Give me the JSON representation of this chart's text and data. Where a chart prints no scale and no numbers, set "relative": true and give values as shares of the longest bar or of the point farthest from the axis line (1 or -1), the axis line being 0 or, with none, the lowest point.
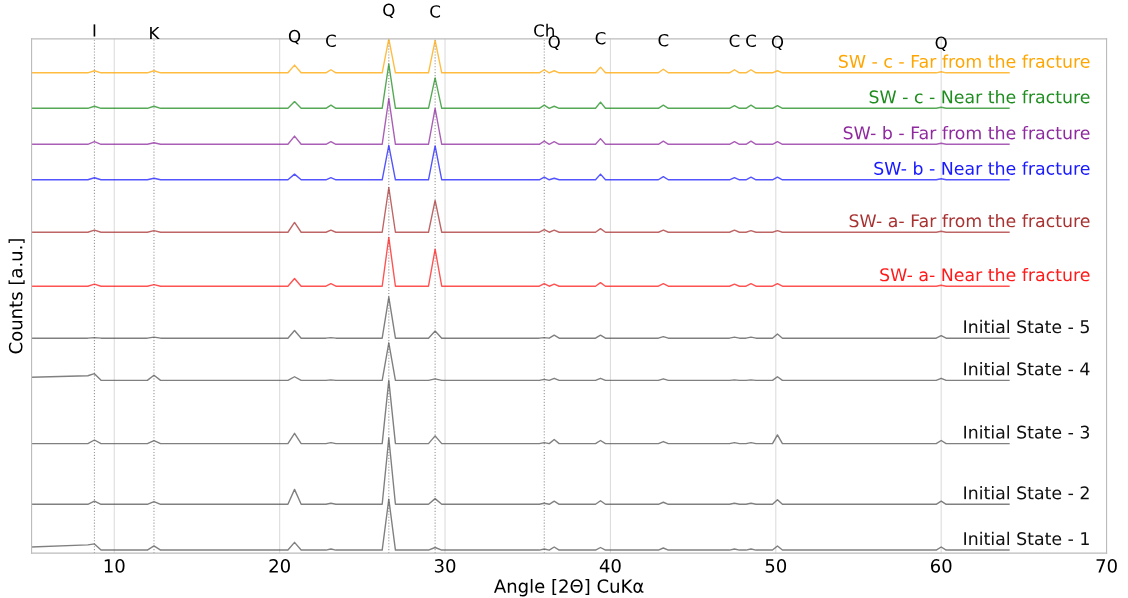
{
  "chart_data": {
    "type": "line",
    "relative": true,
    "xlabel": "Angle [2Θ] CuKα",
    "ylabel": "Counts [a.u.]",
    "xlim": [
      5,
      70
    ],
    "xticks": [
      10,
      20,
      30,
      40,
      50,
      60,
      70
    ],
    "grid": "x",
    "legend": false,
    "marker": "none",
    "line_style": "solid",
    "x": [
      5,
      8.4,
      8.8,
      9.2,
      12.0,
      12.4,
      12.8,
      20.5,
      20.9,
      21.3,
      22.8,
      23.1,
      23.4,
      26.2,
      26.6,
      27.0,
      29.0,
      29.4,
      29.8,
      35.7,
      36.0,
      36.3,
      36.6,
      36.9,
      39.1,
      39.4,
      39.7,
      42.9,
      43.2,
      43.5,
      47.2,
      47.5,
      47.8,
      48.2,
      48.5,
      48.8,
      49.8,
      50.1,
      50.4,
      59.7,
      60.0,
      60.3,
      64.1
    ],
    "series": [
      {
        "name": "SW - c - Far from the fracture",
        "color": "#ffa500",
        "values": [
          0.934,
          0.934,
          0.938,
          0.934,
          0.934,
          0.938,
          0.934,
          0.934,
          0.949,
          0.934,
          0.934,
          0.94,
          0.934,
          0.934,
          1.0,
          0.934,
          0.934,
          0.997,
          0.934,
          0.934,
          0.94,
          0.934,
          0.938,
          0.934,
          0.934,
          0.945,
          0.934,
          0.934,
          0.941,
          0.934,
          0.934,
          0.94,
          0.934,
          0.934,
          0.94,
          0.934,
          0.934,
          0.938,
          0.934,
          0.934,
          0.936,
          0.934,
          0.934
        ]
      },
      {
        "name": "SW - c - Near the fracture",
        "color": "#1e8c1e",
        "values": [
          0.865,
          0.865,
          0.869,
          0.865,
          0.865,
          0.869,
          0.865,
          0.865,
          0.878,
          0.865,
          0.865,
          0.871,
          0.865,
          0.865,
          0.951,
          0.865,
          0.865,
          0.924,
          0.865,
          0.865,
          0.871,
          0.865,
          0.869,
          0.865,
          0.865,
          0.877,
          0.865,
          0.865,
          0.871,
          0.865,
          0.865,
          0.87,
          0.865,
          0.865,
          0.871,
          0.865,
          0.865,
          0.87,
          0.865,
          0.865,
          0.867,
          0.865,
          0.865
        ]
      },
      {
        "name": "SW- b - Far from the fracture",
        "color": "#8e2a9e",
        "values": [
          0.795,
          0.795,
          0.8,
          0.795,
          0.795,
          0.798,
          0.795,
          0.795,
          0.811,
          0.795,
          0.795,
          0.8,
          0.795,
          0.795,
          0.884,
          0.795,
          0.795,
          0.865,
          0.795,
          0.795,
          0.801,
          0.795,
          0.8,
          0.795,
          0.795,
          0.806,
          0.795,
          0.795,
          0.801,
          0.795,
          0.795,
          0.8,
          0.795,
          0.795,
          0.801,
          0.795,
          0.795,
          0.8,
          0.795,
          0.795,
          0.797,
          0.795,
          0.795
        ]
      },
      {
        "name": "SW- b - Near the fracture",
        "color": "#1a1aff",
        "values": [
          0.726,
          0.726,
          0.73,
          0.726,
          0.726,
          0.729,
          0.726,
          0.726,
          0.737,
          0.726,
          0.726,
          0.73,
          0.726,
          0.726,
          0.793,
          0.726,
          0.726,
          0.792,
          0.726,
          0.726,
          0.731,
          0.726,
          0.729,
          0.726,
          0.726,
          0.737,
          0.726,
          0.726,
          0.732,
          0.726,
          0.726,
          0.73,
          0.726,
          0.726,
          0.731,
          0.726,
          0.726,
          0.731,
          0.726,
          0.726,
          0.728,
          0.726,
          0.726
        ]
      },
      {
        "name": "SW- a- Far from the fracture",
        "color": "#a83232",
        "values": [
          0.624,
          0.624,
          0.628,
          0.624,
          0.624,
          0.627,
          0.624,
          0.624,
          0.643,
          0.624,
          0.624,
          0.628,
          0.624,
          0.624,
          0.711,
          0.624,
          0.624,
          0.686,
          0.624,
          0.624,
          0.629,
          0.624,
          0.628,
          0.624,
          0.624,
          0.631,
          0.624,
          0.624,
          0.628,
          0.624,
          0.624,
          0.628,
          0.624,
          0.624,
          0.627,
          0.624,
          0.624,
          0.627,
          0.624,
          0.624,
          0.626,
          0.624,
          0.624
        ]
      },
      {
        "name": "SW- a- Near the fracture",
        "color": "#ff1a1a",
        "values": [
          0.519,
          0.519,
          0.523,
          0.519,
          0.519,
          0.522,
          0.519,
          0.519,
          0.534,
          0.519,
          0.519,
          0.524,
          0.519,
          0.519,
          0.614,
          0.519,
          0.519,
          0.591,
          0.519,
          0.519,
          0.524,
          0.519,
          0.523,
          0.519,
          0.519,
          0.526,
          0.519,
          0.519,
          0.524,
          0.519,
          0.519,
          0.523,
          0.519,
          0.519,
          0.524,
          0.519,
          0.519,
          0.524,
          0.519,
          0.519,
          0.521,
          0.519,
          0.519
        ]
      },
      {
        "name": "Initial State - 5",
        "color": "#555555",
        "values": [
          0.418,
          0.418,
          0.419,
          0.418,
          0.418,
          0.42,
          0.418,
          0.418,
          0.433,
          0.418,
          0.418,
          0.419,
          0.418,
          0.418,
          0.498,
          0.418,
          0.418,
          0.432,
          0.418,
          0.418,
          0.419,
          0.418,
          0.424,
          0.418,
          0.418,
          0.424,
          0.418,
          0.418,
          0.421,
          0.418,
          0.418,
          0.42,
          0.418,
          0.418,
          0.42,
          0.418,
          0.418,
          0.426,
          0.418,
          0.418,
          0.423,
          0.418,
          0.418
        ]
      },
      {
        "name": "Initial State - 4",
        "color": "#555555",
        "values": [
          0.342,
          0.345,
          0.349,
          0.336,
          0.336,
          0.346,
          0.336,
          0.336,
          0.343,
          0.336,
          0.336,
          0.337,
          0.336,
          0.336,
          0.409,
          0.336,
          0.336,
          0.339,
          0.336,
          0.336,
          0.338,
          0.336,
          0.34,
          0.336,
          0.336,
          0.34,
          0.336,
          0.336,
          0.339,
          0.336,
          0.336,
          0.337,
          0.336,
          0.336,
          0.337,
          0.336,
          0.336,
          0.343,
          0.336,
          0.336,
          0.34,
          0.336,
          0.336
        ]
      },
      {
        "name": "Initial State - 3",
        "color": "#555555",
        "values": [
          0.213,
          0.213,
          0.22,
          0.213,
          0.213,
          0.219,
          0.213,
          0.213,
          0.233,
          0.213,
          0.213,
          0.215,
          0.213,
          0.213,
          0.336,
          0.213,
          0.213,
          0.228,
          0.213,
          0.213,
          0.215,
          0.213,
          0.221,
          0.213,
          0.213,
          0.219,
          0.213,
          0.213,
          0.217,
          0.213,
          0.213,
          0.215,
          0.213,
          0.213,
          0.215,
          0.213,
          0.213,
          0.23,
          0.213,
          0.213,
          0.219,
          0.213,
          0.213
        ]
      },
      {
        "name": "Initial State - 2",
        "color": "#555555",
        "values": [
          0.095,
          0.095,
          0.101,
          0.095,
          0.095,
          0.1,
          0.095,
          0.095,
          0.124,
          0.095,
          0.095,
          0.097,
          0.095,
          0.095,
          0.224,
          0.095,
          0.095,
          0.106,
          0.095,
          0.095,
          0.097,
          0.095,
          0.101,
          0.095,
          0.095,
          0.102,
          0.095,
          0.095,
          0.099,
          0.095,
          0.095,
          0.097,
          0.095,
          0.095,
          0.097,
          0.095,
          0.095,
          0.104,
          0.095,
          0.095,
          0.101,
          0.095,
          0.095
        ]
      },
      {
        "name": "Initial State - 1",
        "color": "#555555",
        "values": [
          0.012,
          0.016,
          0.018,
          0.006,
          0.006,
          0.014,
          0.006,
          0.006,
          0.021,
          0.006,
          0.006,
          0.008,
          0.006,
          0.006,
          0.105,
          0.006,
          0.006,
          0.011,
          0.006,
          0.006,
          0.008,
          0.006,
          0.012,
          0.006,
          0.006,
          0.011,
          0.006,
          0.006,
          0.01,
          0.006,
          0.006,
          0.008,
          0.006,
          0.006,
          0.008,
          0.006,
          0.006,
          0.014,
          0.006,
          0.006,
          0.012,
          0.006,
          0.006
        ]
      }
    ],
    "ref_lines": [
      {
        "axis": "x",
        "value": 8.8,
        "color": "#999999",
        "line_style": "dotted"
      },
      {
        "axis": "x",
        "value": 12.4,
        "color": "#999999",
        "line_style": "dotted"
      },
      {
        "axis": "x",
        "value": 26.6,
        "color": "#999999",
        "line_style": "dotted"
      },
      {
        "axis": "x",
        "value": 29.4,
        "color": "#999999",
        "line_style": "dotted"
      },
      {
        "axis": "x",
        "value": 36.0,
        "color": "#999999",
        "line_style": "dotted"
      }
    ],
    "annotations": [
      {
        "text": "I",
        "x": 8.8,
        "y": 0.96
      },
      {
        "text": "K",
        "x": 12.4,
        "y": 0.955
      },
      {
        "text": "Q",
        "x": 20.9,
        "y": 0.949
      },
      {
        "text": "C",
        "x": 23.1,
        "y": 0.94
      },
      {
        "text": "Q",
        "x": 26.6,
        "y": 1.0
      },
      {
        "text": "C",
        "x": 29.4,
        "y": 0.997
      },
      {
        "text": "Ch",
        "x": 36.0,
        "y": 0.96
      },
      {
        "text": "Q",
        "x": 36.6,
        "y": 0.938
      },
      {
        "text": "C",
        "x": 39.4,
        "y": 0.945
      },
      {
        "text": "C",
        "x": 43.2,
        "y": 0.941
      },
      {
        "text": "C",
        "x": 47.5,
        "y": 0.94
      },
      {
        "text": "C",
        "x": 48.5,
        "y": 0.94
      },
      {
        "text": "Q",
        "x": 50.1,
        "y": 0.938
      },
      {
        "text": "Q",
        "x": 60.0,
        "y": 0.936
      }
    ]
  }
}
